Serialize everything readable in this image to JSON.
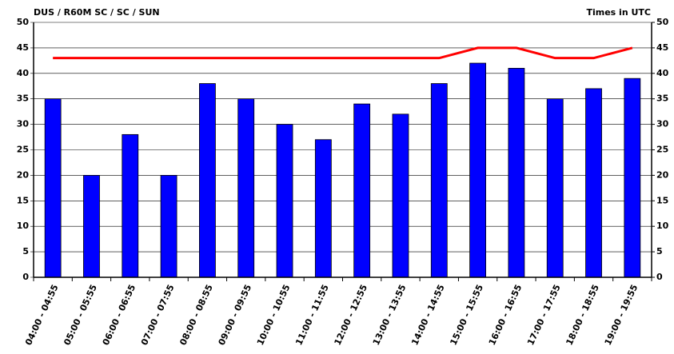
{
  "chart_data": {
    "type": "bar",
    "title": "DUS / R60M SC / SC / SUN",
    "subtitle": "Times in UTC",
    "categories": [
      "04:00 - 04:55",
      "05:00 - 05:55",
      "06:00 - 06:55",
      "07:00 - 07:55",
      "08:00 - 08:55",
      "09:00 - 09:55",
      "10:00 - 10:55",
      "11:00 - 11:55",
      "12:00 - 12:55",
      "13:00 - 13:55",
      "14:00 - 14:55",
      "15:00 - 15:55",
      "16:00 - 16:55",
      "17:00 - 17:55",
      "18:00 - 18:55",
      "19:00 - 19:55"
    ],
    "series": [
      {
        "type": "bar",
        "color": "#0000ff",
        "values": [
          35,
          20,
          28,
          20,
          38,
          35,
          30,
          27,
          34,
          32,
          38,
          42,
          41,
          35,
          37,
          39
        ]
      },
      {
        "type": "line",
        "color": "#ff0000",
        "values": [
          43,
          43,
          43,
          43,
          43,
          43,
          43,
          43,
          43,
          43,
          43,
          45,
          45,
          43,
          43,
          45
        ]
      }
    ],
    "ylim": [
      0,
      50
    ],
    "yticks": [
      0,
      5,
      10,
      15,
      20,
      25,
      30,
      35,
      40,
      45,
      50
    ],
    "y2lim": [
      0,
      50
    ],
    "y2ticks": [
      0,
      5,
      10,
      15,
      20,
      25,
      30,
      35,
      40,
      45,
      50
    ],
    "grid": true
  }
}
